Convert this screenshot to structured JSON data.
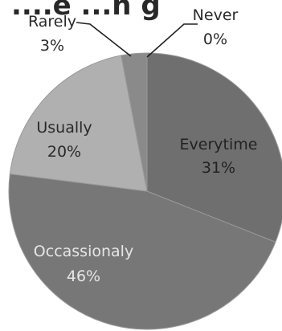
{
  "chart_data": {
    "type": "pie",
    "title": "",
    "title_fragment": "....e ...n g",
    "slices": [
      {
        "label": "Everytime",
        "value": 31,
        "value_label": "31%",
        "color": "#6f6f6f",
        "label_color": "#222222",
        "label_position": "inside"
      },
      {
        "label": "Occassionaly",
        "value": 46,
        "value_label": "46%",
        "color": "#777777",
        "label_color": "#e6e6e6",
        "label_position": "inside"
      },
      {
        "label": "Usually",
        "value": 20,
        "value_label": "20%",
        "color": "#b0b0b0",
        "label_color": "#2a2a2a",
        "label_position": "inside"
      },
      {
        "label": "Rarely",
        "value": 3,
        "value_label": "3%",
        "color": "#8a8a8a",
        "label_color": "#2a2a2a",
        "label_position": "outside-left"
      },
      {
        "label": "Never",
        "value": 0,
        "value_label": "0%",
        "color": "#8a8a8a",
        "label_color": "#2a2a2a",
        "label_position": "outside-right"
      }
    ],
    "start_angle_deg": 0,
    "direction": "clockwise",
    "legend": "none"
  }
}
